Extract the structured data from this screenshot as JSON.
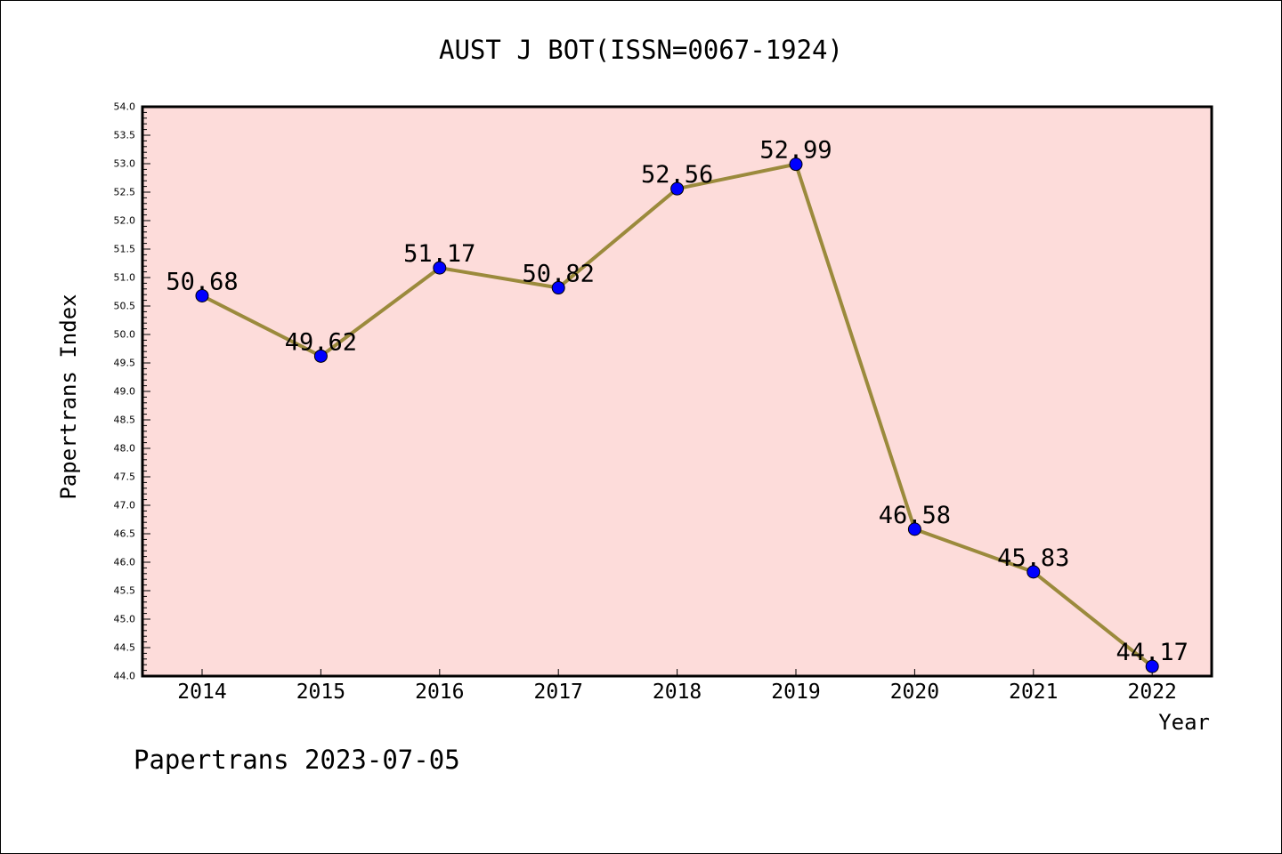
{
  "chart_data": {
    "type": "line",
    "title": "AUST J BOT(ISSN=0067-1924)",
    "xlabel": "Year",
    "ylabel": "Papertrans Index",
    "categories": [
      "2014",
      "2015",
      "2016",
      "2017",
      "2018",
      "2019",
      "2020",
      "2021",
      "2022"
    ],
    "values": [
      50.68,
      49.62,
      51.17,
      50.82,
      52.56,
      52.99,
      46.58,
      45.83,
      44.17
    ],
    "data_labels": [
      "50.68",
      "49.62",
      "51.17",
      "50.82",
      "52.56",
      "52.99",
      "46.58",
      "45.83",
      "44.17"
    ],
    "ylim": [
      44.0,
      54.0
    ],
    "ytick_step": 0.5,
    "ytick_labels": [
      "44.0",
      "44.5",
      "45.0",
      "45.5",
      "46.0",
      "46.5",
      "47.0",
      "47.5",
      "48.0",
      "48.5",
      "49.0",
      "49.5",
      "50.0",
      "50.5",
      "51.0",
      "51.5",
      "52.0",
      "52.5",
      "53.0",
      "53.5",
      "54.0"
    ],
    "grid": false,
    "colors": {
      "plot_background": "#fddcda",
      "line": "#9b8a3c",
      "marker": "#0000ff"
    }
  },
  "footer": {
    "text": "Papertrans 2023-07-05"
  }
}
